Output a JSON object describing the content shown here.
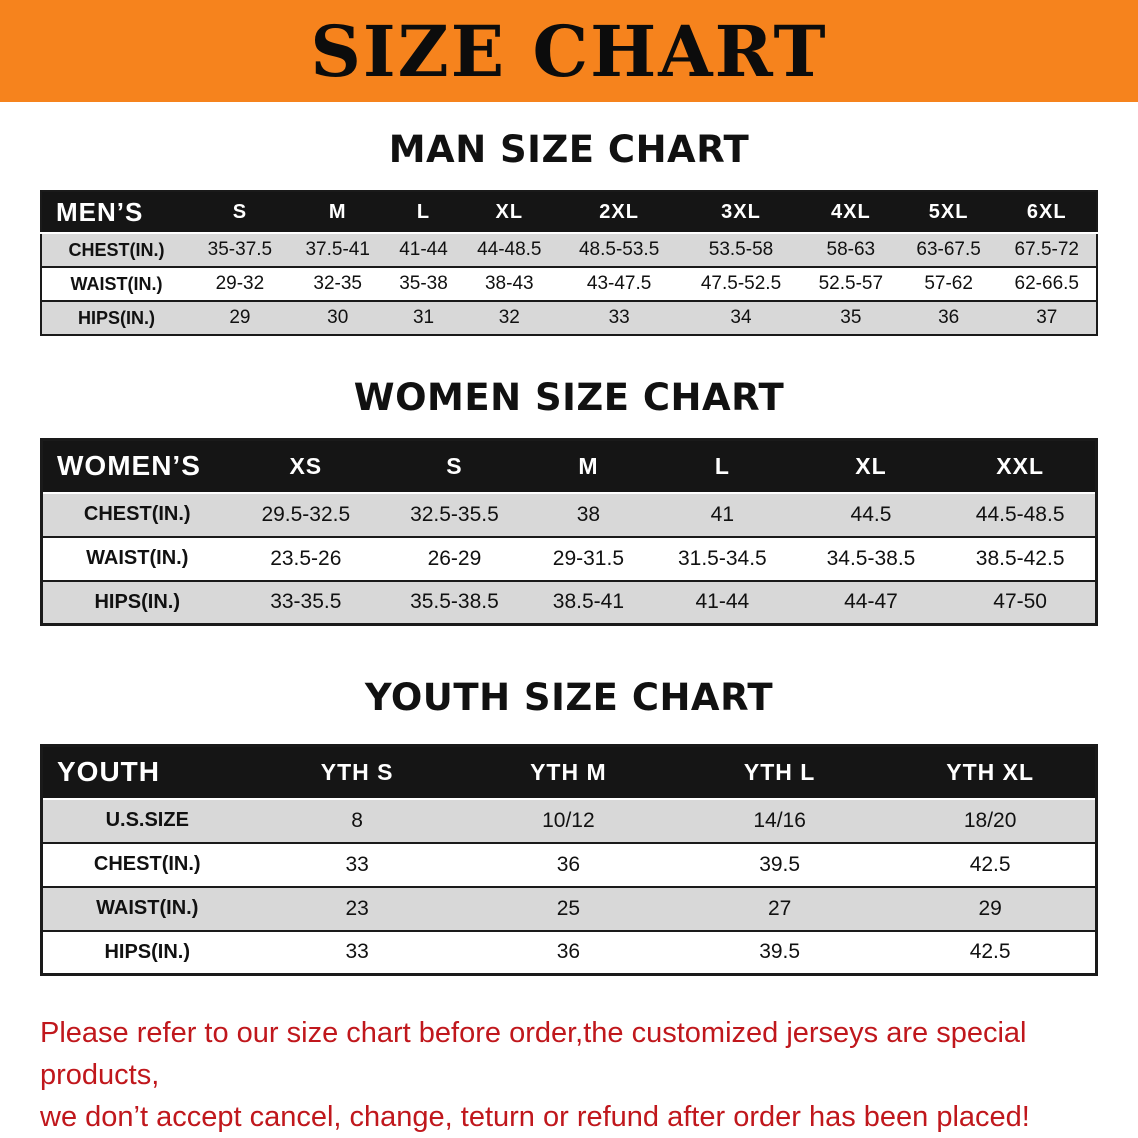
{
  "banner": {
    "title": "SIZE CHART"
  },
  "sections": {
    "men": {
      "heading": "MAN SIZE CHART",
      "table": {
        "header": [
          "MEN’S",
          "S",
          "M",
          "L",
          "XL",
          "2XL",
          "3XL",
          "4XL",
          "5XL",
          "6XL"
        ],
        "rows": [
          [
            "CHEST(IN.)",
            "35-37.5",
            "37.5-41",
            "41-44",
            "44-48.5",
            "48.5-53.5",
            "53.5-58",
            "58-63",
            "63-67.5",
            "67.5-72"
          ],
          [
            "WAIST(IN.)",
            "29-32",
            "32-35",
            "35-38",
            "38-43",
            "43-47.5",
            "47.5-52.5",
            "52.5-57",
            "57-62",
            "62-66.5"
          ],
          [
            "HIPS(IN.)",
            "29",
            "30",
            "31",
            "32",
            "33",
            "34",
            "35",
            "36",
            "37"
          ]
        ]
      }
    },
    "women": {
      "heading": "WOMEN SIZE CHART",
      "table": {
        "header": [
          "WOMEN’S",
          "XS",
          "S",
          "M",
          "L",
          "XL",
          "XXL"
        ],
        "rows": [
          [
            "CHEST(IN.)",
            "29.5-32.5",
            "32.5-35.5",
            "38",
            "41",
            "44.5",
            "44.5-48.5"
          ],
          [
            "WAIST(IN.)",
            "23.5-26",
            "26-29",
            "29-31.5",
            "31.5-34.5",
            "34.5-38.5",
            "38.5-42.5"
          ],
          [
            "HIPS(IN.)",
            "33-35.5",
            "35.5-38.5",
            "38.5-41",
            "41-44",
            "44-47",
            "47-50"
          ]
        ]
      }
    },
    "youth": {
      "heading": "YOUTH SIZE CHART",
      "table": {
        "header": [
          "YOUTH",
          "YTH S",
          "YTH M",
          "YTH L",
          "YTH XL"
        ],
        "rows": [
          [
            "U.S.SIZE",
            "8",
            "10/12",
            "14/16",
            "18/20"
          ],
          [
            "CHEST(IN.)",
            "33",
            "36",
            "39.5",
            "42.5"
          ],
          [
            "WAIST(IN.)",
            "23",
            "25",
            "27",
            "29"
          ],
          [
            "HIPS(IN.)",
            "33",
            "36",
            "39.5",
            "42.5"
          ]
        ]
      }
    }
  },
  "footer": {
    "line1": "Please refer to our size chart before order,the customized jerseys are special products,",
    "line2": "we don’t accept cancel, change, teturn or refund after order has been placed!"
  },
  "colors": {
    "banner_bg": "#f6831d",
    "table_header_bg": "#151515",
    "row_alt_bg": "#d8d8d8",
    "note_red": "#c0171c",
    "text_black": "#111111"
  }
}
